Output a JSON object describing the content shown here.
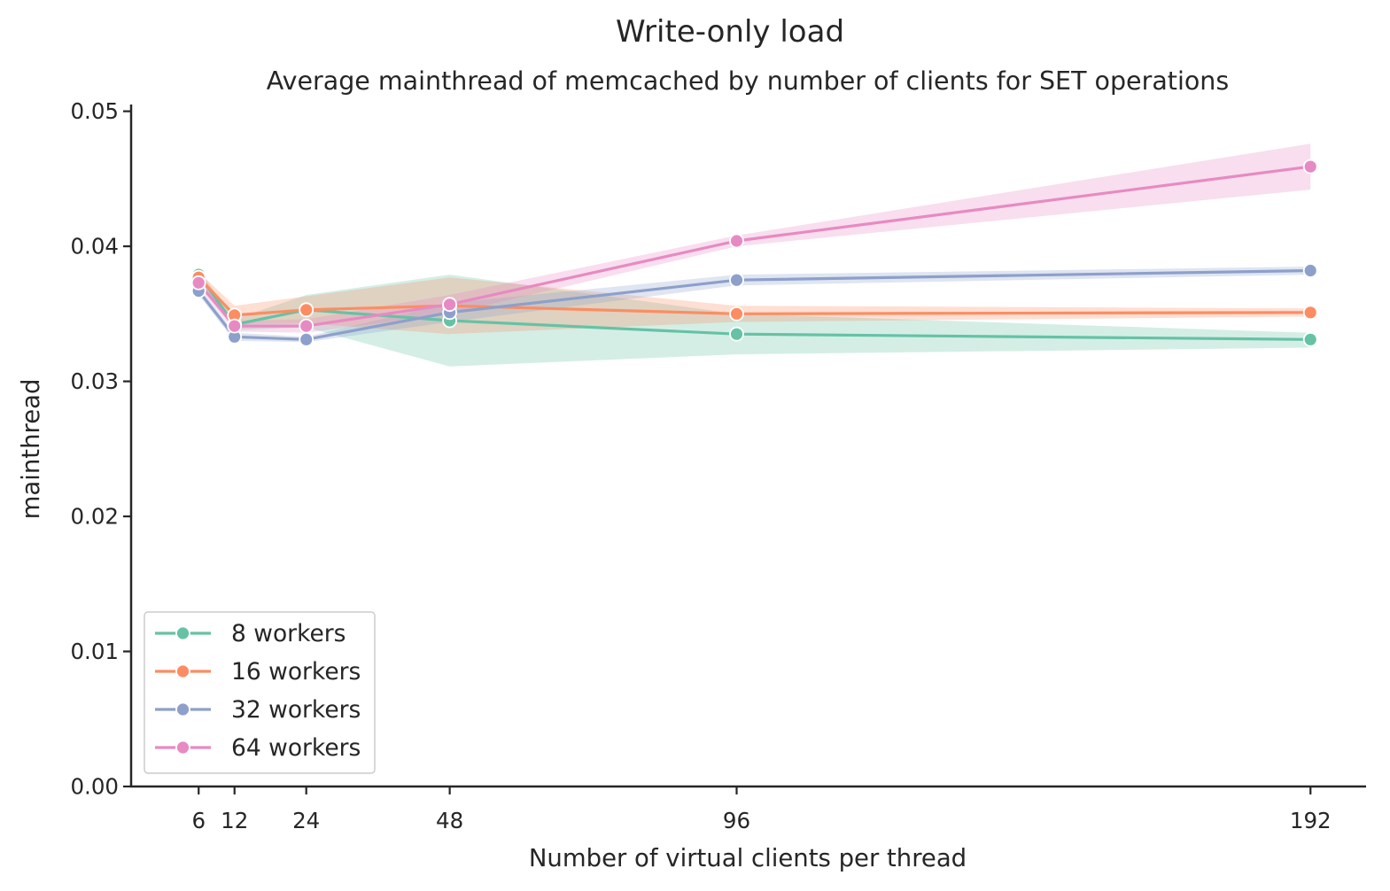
{
  "chart_data": {
    "type": "line",
    "title": "Write-only load",
    "subtitle": "Average mainthread of memcached by number of clients for SET operations",
    "xlabel": "Number of virtual clients per thread",
    "ylabel": "mainthread",
    "x": [
      6,
      12,
      24,
      48,
      96,
      192
    ],
    "xticks": [
      "6",
      "12",
      "24",
      "48",
      "96",
      "192"
    ],
    "yticks": [
      "0.00",
      "0.01",
      "0.02",
      "0.03",
      "0.04",
      "0.05"
    ],
    "xlim": [
      -5.3,
      201.3
    ],
    "ylim": [
      0,
      0.0505
    ],
    "grid": false,
    "legend_position": "lower-left",
    "series": [
      {
        "name": "8 workers",
        "color": "#66c2a5",
        "values": [
          0.0379,
          0.0342,
          0.0353,
          0.0345,
          0.0335,
          0.0331
        ],
        "ci_low": [
          0.0375,
          0.0338,
          0.034,
          0.0311,
          0.032,
          0.0325
        ],
        "ci_high": [
          0.0383,
          0.0346,
          0.0364,
          0.0379,
          0.035,
          0.0336
        ]
      },
      {
        "name": "16 workers",
        "color": "#fc8d62",
        "values": [
          0.0377,
          0.0349,
          0.0353,
          0.0356,
          0.035,
          0.0351
        ],
        "ci_low": [
          0.0373,
          0.0342,
          0.0343,
          0.0335,
          0.0344,
          0.0348
        ],
        "ci_high": [
          0.0381,
          0.0356,
          0.0363,
          0.0377,
          0.0356,
          0.0354
        ]
      },
      {
        "name": "32 workers",
        "color": "#8da0cb",
        "values": [
          0.0367,
          0.0333,
          0.0331,
          0.0351,
          0.0375,
          0.0382
        ],
        "ci_low": [
          0.0364,
          0.033,
          0.0329,
          0.0344,
          0.0371,
          0.0379
        ],
        "ci_high": [
          0.037,
          0.0336,
          0.0333,
          0.0358,
          0.0379,
          0.0385
        ]
      },
      {
        "name": "64 workers",
        "color": "#e78ac3",
        "values": [
          0.0373,
          0.0341,
          0.0341,
          0.0357,
          0.0404,
          0.0459
        ],
        "ci_low": [
          0.037,
          0.0337,
          0.0336,
          0.035,
          0.04,
          0.0442
        ],
        "ci_high": [
          0.0376,
          0.0345,
          0.0346,
          0.0364,
          0.0408,
          0.0476
        ]
      }
    ]
  }
}
